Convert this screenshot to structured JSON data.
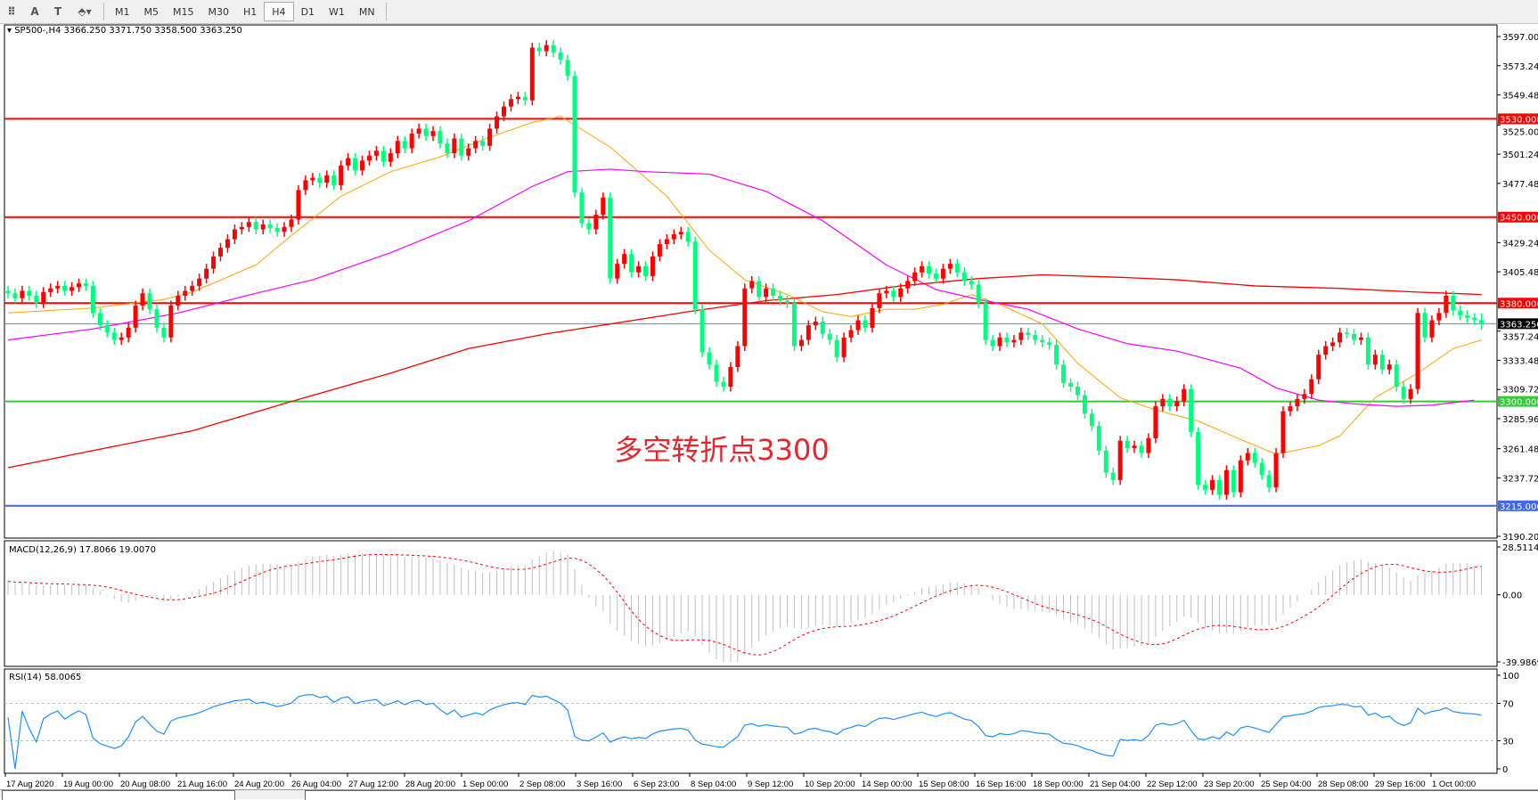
{
  "toolbar": {
    "icons": [
      "grid-f-icon",
      "text-a-icon",
      "text-label-icon",
      "shapes-dropdown-icon"
    ],
    "icon_glyphs": [
      "⠿",
      "A",
      "T",
      "⬘▾"
    ],
    "timeframes": [
      "M1",
      "M5",
      "M15",
      "M30",
      "H1",
      "H4",
      "D1",
      "W1",
      "MN"
    ],
    "active_timeframe": "H4"
  },
  "chart_data": {
    "type": "candlestick",
    "header": "SP500-,H4  3366.250 3371.750 3358.500 3363.250",
    "symbol": "SP500-",
    "timeframe": "H4",
    "last_bar": {
      "open": 3366.25,
      "high": 3371.75,
      "low": 3358.5,
      "close": 3363.25
    },
    "up_color": "#ff0000",
    "down_color": "#00ff7f",
    "ylim": [
      3190.2,
      3597.0
    ],
    "price_ticks": [
      "3597.000",
      "3573.240",
      "3549.480",
      "3525.000",
      "3501.240",
      "3477.480",
      "3429.240",
      "3405.480",
      "3357.240",
      "3333.480",
      "3309.720",
      "3285.960",
      "3261.480",
      "3237.720",
      "3190.200"
    ],
    "price_tick_values": [
      3597.0,
      3573.24,
      3549.48,
      3525.0,
      3501.24,
      3477.48,
      3429.24,
      3405.48,
      3357.24,
      3333.48,
      3309.72,
      3285.96,
      3261.48,
      3237.72,
      3190.2
    ],
    "close": [
      3388,
      3384,
      3390,
      3386,
      3380,
      3389,
      3392,
      3394,
      3390,
      3393,
      3396,
      3394,
      3372,
      3362,
      3356,
      3350,
      3352,
      3360,
      3378,
      3388,
      3375,
      3360,
      3352,
      3378,
      3386,
      3390,
      3394,
      3400,
      3408,
      3418,
      3425,
      3432,
      3440,
      3442,
      3446,
      3440,
      3444,
      3441,
      3438,
      3442,
      3448,
      3472,
      3480,
      3482,
      3478,
      3484,
      3476,
      3492,
      3498,
      3488,
      3496,
      3500,
      3504,
      3495,
      3502,
      3512,
      3506,
      3518,
      3522,
      3516,
      3520,
      3510,
      3502,
      3514,
      3500,
      3506,
      3512,
      3508,
      3522,
      3532,
      3540,
      3546,
      3548,
      3545,
      3588,
      3585,
      3590,
      3584,
      3578,
      3565,
      3470,
      3445,
      3440,
      3452,
      3466,
      3400,
      3412,
      3420,
      3405,
      3410,
      3402,
      3418,
      3428,
      3432,
      3436,
      3438,
      3430,
      3375,
      3340,
      3330,
      3316,
      3312,
      3328,
      3345,
      3392,
      3398,
      3385,
      3392,
      3386,
      3382,
      3380,
      3345,
      3350,
      3362,
      3365,
      3355,
      3350,
      3336,
      3352,
      3358,
      3366,
      3360,
      3376,
      3388,
      3390,
      3385,
      3392,
      3398,
      3405,
      3410,
      3404,
      3400,
      3408,
      3412,
      3405,
      3398,
      3395,
      3380,
      3350,
      3345,
      3352,
      3348,
      3350,
      3356,
      3354,
      3350,
      3348,
      3346,
      3330,
      3315,
      3312,
      3305,
      3290,
      3280,
      3260,
      3242,
      3236,
      3268,
      3262,
      3264,
      3258,
      3270,
      3296,
      3302,
      3296,
      3300,
      3310,
      3275,
      3232,
      3228,
      3236,
      3224,
      3244,
      3226,
      3252,
      3258,
      3250,
      3240,
      3230,
      3258,
      3292,
      3296,
      3302,
      3306,
      3318,
      3338,
      3345,
      3348,
      3356,
      3355,
      3350,
      3352,
      3330,
      3338,
      3326,
      3330,
      3312,
      3302,
      3310,
      3372,
      3352,
      3366,
      3372,
      3386,
      3374,
      3370,
      3368,
      3366.25,
      3363.25
    ],
    "ma_fast": {
      "color": "#ffa500",
      "points": [
        [
          0,
          3372
        ],
        [
          12,
          3376
        ],
        [
          22,
          3383
        ],
        [
          26,
          3389
        ],
        [
          35,
          3411
        ],
        [
          40,
          3435
        ],
        [
          47,
          3467
        ],
        [
          54,
          3487
        ],
        [
          61,
          3499
        ],
        [
          68,
          3515
        ],
        [
          74,
          3527
        ],
        [
          78,
          3532
        ],
        [
          85,
          3507
        ],
        [
          93,
          3467
        ],
        [
          99,
          3423
        ],
        [
          104,
          3399
        ],
        [
          110,
          3387
        ],
        [
          115,
          3373
        ],
        [
          119,
          3369
        ],
        [
          124,
          3375
        ],
        [
          128,
          3375
        ],
        [
          132,
          3379
        ],
        [
          136,
          3387
        ],
        [
          140,
          3379
        ],
        [
          146,
          3363
        ],
        [
          151,
          3331
        ],
        [
          157,
          3303
        ],
        [
          162,
          3293
        ],
        [
          168,
          3284
        ],
        [
          174,
          3269
        ],
        [
          179,
          3257
        ],
        [
          185,
          3264
        ],
        [
          188,
          3272
        ],
        [
          193,
          3303
        ],
        [
          199,
          3323
        ],
        [
          204,
          3343
        ],
        [
          208,
          3350
        ]
      ]
    },
    "ma_mid": {
      "color": "#ff00ff",
      "points": [
        [
          0,
          3350
        ],
        [
          12,
          3359
        ],
        [
          24,
          3372
        ],
        [
          35,
          3388
        ],
        [
          43,
          3399
        ],
        [
          54,
          3421
        ],
        [
          65,
          3447
        ],
        [
          74,
          3475
        ],
        [
          79,
          3487
        ],
        [
          85,
          3489
        ],
        [
          90,
          3487
        ],
        [
          99,
          3485
        ],
        [
          107,
          3471
        ],
        [
          115,
          3447
        ],
        [
          124,
          3411
        ],
        [
          131,
          3391
        ],
        [
          137,
          3383
        ],
        [
          144,
          3375
        ],
        [
          151,
          3359
        ],
        [
          158,
          3347
        ],
        [
          165,
          3341
        ],
        [
          174,
          3327
        ],
        [
          179,
          3311
        ],
        [
          185,
          3301
        ],
        [
          190,
          3298
        ],
        [
          196,
          3296
        ],
        [
          201,
          3297
        ],
        [
          207,
          3301
        ]
      ]
    },
    "ma_slow": {
      "color": "#ff0000",
      "points": [
        [
          0,
          3246
        ],
        [
          12,
          3260
        ],
        [
          26,
          3276
        ],
        [
          40,
          3300
        ],
        [
          54,
          3323
        ],
        [
          65,
          3343
        ],
        [
          76,
          3355
        ],
        [
          85,
          3363
        ],
        [
          96,
          3373
        ],
        [
          107,
          3382
        ],
        [
          117,
          3387
        ],
        [
          126,
          3394
        ],
        [
          137,
          3400
        ],
        [
          146,
          3403
        ],
        [
          157,
          3401
        ],
        [
          165,
          3399
        ],
        [
          176,
          3394
        ],
        [
          188,
          3392
        ],
        [
          199,
          3389
        ],
        [
          208,
          3387
        ]
      ]
    },
    "levels": [
      {
        "price": 3530,
        "label": "3530.000",
        "color": "#ff0000"
      },
      {
        "price": 3450,
        "label": "3450.000",
        "color": "#ff0000"
      },
      {
        "price": 3380,
        "label": "3380.000",
        "color": "#ff0000"
      },
      {
        "price": 3300,
        "label": "3300.000",
        "color": "#32cd32"
      },
      {
        "price": 3215,
        "label": "3215.000",
        "color": "#4169e1"
      }
    ],
    "current_price": {
      "price": 3363.25,
      "label": "3363.250",
      "color": "#778899"
    },
    "annotation": "多空转折点3300",
    "time_labels": [
      "17 Aug 2020",
      "19 Aug 00:00",
      "20 Aug 08:00",
      "21 Aug 16:00",
      "24 Aug 20:00",
      "26 Aug 04:00",
      "27 Aug 12:00",
      "28 Aug 20:00",
      "1 Sep 00:00",
      "2 Sep 08:00",
      "3 Sep 16:00",
      "6 Sep 23:00",
      "8 Sep 04:00",
      "9 Sep 12:00",
      "10 Sep 20:00",
      "14 Sep 00:00",
      "15 Sep 08:00",
      "16 Sep 16:00",
      "18 Sep 00:00",
      "21 Sep 04:00",
      "22 Sep 12:00",
      "23 Sep 20:00",
      "25 Sep 04:00",
      "28 Sep 08:00",
      "29 Sep 16:00",
      "1 Oct 00:00"
    ],
    "macd": {
      "label": "MACD(12,26,9) 17.8066 19.0070",
      "params": [
        12,
        26,
        9
      ],
      "main": 17.8066,
      "signal": 19.007,
      "ylim": [
        -39.9869,
        28.5114
      ],
      "ticks": [
        "28.5114",
        "0.00",
        "-39.9869"
      ],
      "hist_color": "#c0c0c0",
      "signal_color": "#ff0000"
    },
    "rsi": {
      "label": "RSI(14) 58.0065",
      "period": 14,
      "value": 58.0065,
      "ylim": [
        0,
        100
      ],
      "ticks": [
        "100",
        "70",
        "30",
        "0"
      ],
      "levels": [
        70,
        30
      ],
      "color": "#1e90ff"
    }
  }
}
